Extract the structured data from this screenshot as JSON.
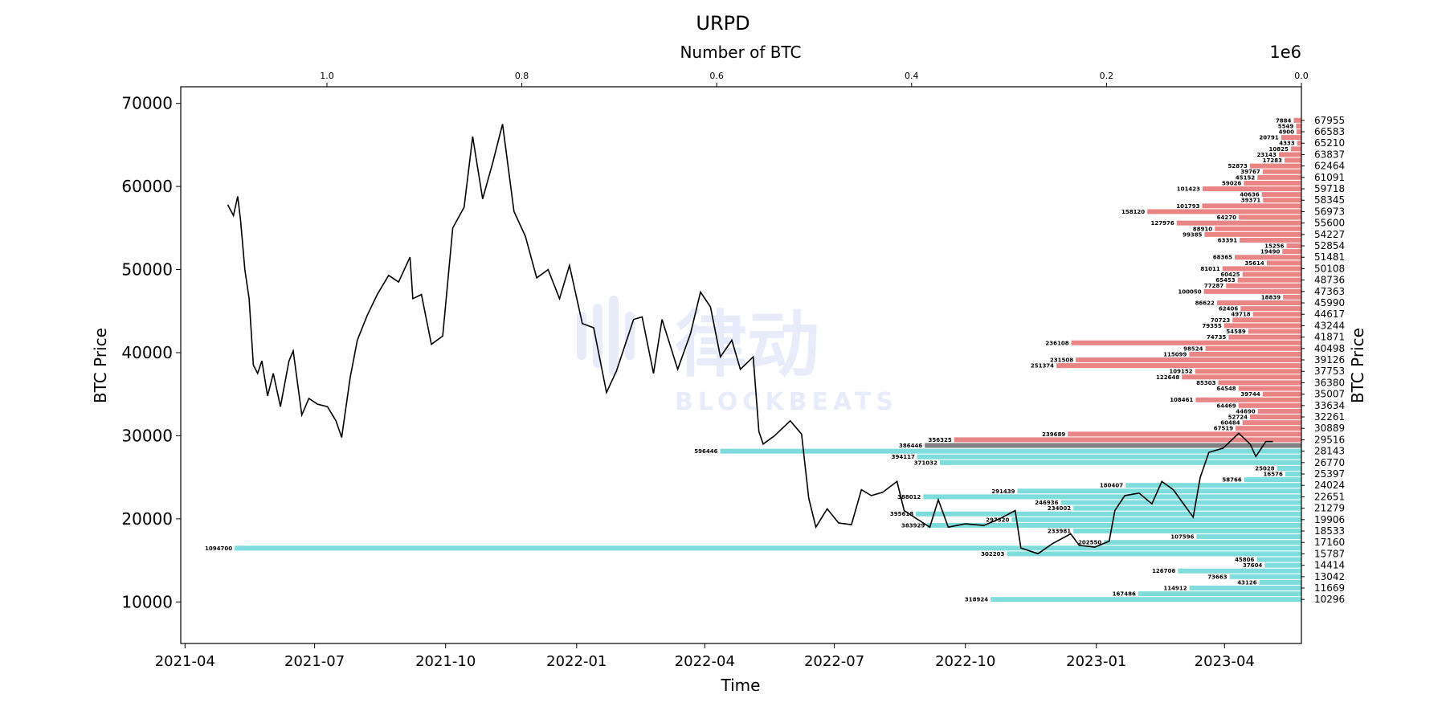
{
  "chart_data": {
    "type": "line+barh",
    "title": "URPD",
    "xlabel": "Time",
    "ylabel": "BTC Price",
    "ylabel_right": "BTC Price",
    "x2label": "Number of BTC",
    "x2_offset_label": "1e6",
    "ylim": [
      5000,
      72000
    ],
    "xlim": [
      "2021-03-29",
      "2023-05-25"
    ],
    "x2lim": [
      1150000,
      0
    ],
    "x_ticks": [
      "2021-04",
      "2021-07",
      "2021-10",
      "2022-01",
      "2022-04",
      "2022-07",
      "2022-10",
      "2023-01",
      "2023-04"
    ],
    "y_ticks": [
      10000,
      20000,
      30000,
      40000,
      50000,
      60000,
      70000
    ],
    "x2_ticks": [
      1.0,
      0.8,
      0.6,
      0.4,
      0.2,
      0.0
    ],
    "grid": false,
    "colors": {
      "above": "#e98585",
      "below": "#7fdcdc",
      "current": "#808080",
      "line": "#000000"
    },
    "price_series": {
      "name": "BTC Price",
      "points": [
        [
          "2021-05-01",
          57800
        ],
        [
          "2021-05-05",
          56500
        ],
        [
          "2021-05-08",
          58800
        ],
        [
          "2021-05-10",
          56000
        ],
        [
          "2021-05-13",
          50000
        ],
        [
          "2021-05-16",
          46500
        ],
        [
          "2021-05-19",
          38500
        ],
        [
          "2021-05-22",
          37500
        ],
        [
          "2021-05-25",
          39000
        ],
        [
          "2021-05-29",
          34800
        ],
        [
          "2021-06-02",
          37500
        ],
        [
          "2021-06-07",
          33500
        ],
        [
          "2021-06-13",
          39000
        ],
        [
          "2021-06-16",
          40200
        ],
        [
          "2021-06-22",
          32500
        ],
        [
          "2021-06-27",
          34500
        ],
        [
          "2021-07-03",
          33800
        ],
        [
          "2021-07-10",
          33500
        ],
        [
          "2021-07-16",
          31800
        ],
        [
          "2021-07-20",
          29800
        ],
        [
          "2021-07-26",
          37000
        ],
        [
          "2021-07-31",
          41500
        ],
        [
          "2021-08-07",
          44500
        ],
        [
          "2021-08-14",
          47000
        ],
        [
          "2021-08-22",
          49300
        ],
        [
          "2021-08-29",
          48500
        ],
        [
          "2021-09-06",
          51500
        ],
        [
          "2021-09-08",
          46500
        ],
        [
          "2021-09-14",
          47000
        ],
        [
          "2021-09-21",
          41000
        ],
        [
          "2021-09-29",
          42000
        ],
        [
          "2021-10-06",
          55000
        ],
        [
          "2021-10-14",
          57500
        ],
        [
          "2021-10-20",
          66000
        ],
        [
          "2021-10-27",
          58500
        ],
        [
          "2021-11-03",
          62800
        ],
        [
          "2021-11-10",
          67500
        ],
        [
          "2021-11-18",
          57000
        ],
        [
          "2021-11-26",
          54000
        ],
        [
          "2021-12-04",
          49000
        ],
        [
          "2021-12-12",
          50000
        ],
        [
          "2021-12-20",
          46500
        ],
        [
          "2021-12-27",
          50500
        ],
        [
          "2022-01-05",
          43500
        ],
        [
          "2022-01-13",
          43000
        ],
        [
          "2022-01-22",
          35200
        ],
        [
          "2022-01-29",
          37800
        ],
        [
          "2022-02-10",
          44000
        ],
        [
          "2022-02-16",
          44300
        ],
        [
          "2022-02-24",
          37500
        ],
        [
          "2022-03-02",
          44000
        ],
        [
          "2022-03-13",
          38000
        ],
        [
          "2022-03-22",
          42300
        ],
        [
          "2022-03-29",
          47300
        ],
        [
          "2022-04-05",
          45500
        ],
        [
          "2022-04-12",
          39500
        ],
        [
          "2022-04-20",
          41500
        ],
        [
          "2022-04-26",
          38000
        ],
        [
          "2022-05-05",
          39500
        ],
        [
          "2022-05-09",
          30500
        ],
        [
          "2022-05-12",
          29000
        ],
        [
          "2022-05-20",
          30000
        ],
        [
          "2022-05-31",
          31800
        ],
        [
          "2022-06-08",
          30200
        ],
        [
          "2022-06-13",
          22500
        ],
        [
          "2022-06-18",
          19000
        ],
        [
          "2022-06-26",
          21200
        ],
        [
          "2022-07-04",
          19500
        ],
        [
          "2022-07-13",
          19300
        ],
        [
          "2022-07-20",
          23500
        ],
        [
          "2022-07-27",
          22800
        ],
        [
          "2022-08-04",
          23200
        ],
        [
          "2022-08-14",
          24500
        ],
        [
          "2022-08-19",
          21000
        ],
        [
          "2022-08-28",
          20000
        ],
        [
          "2022-09-06",
          19000
        ],
        [
          "2022-09-12",
          22300
        ],
        [
          "2022-09-19",
          19000
        ],
        [
          "2022-10-01",
          19400
        ],
        [
          "2022-10-14",
          19200
        ],
        [
          "2022-10-25",
          20000
        ],
        [
          "2022-11-05",
          21000
        ],
        [
          "2022-11-09",
          16500
        ],
        [
          "2022-11-21",
          15800
        ],
        [
          "2022-12-01",
          17000
        ],
        [
          "2022-12-14",
          18200
        ],
        [
          "2022-12-20",
          16800
        ],
        [
          "2022-12-31",
          16600
        ],
        [
          "2023-01-10",
          17300
        ],
        [
          "2023-01-14",
          21000
        ],
        [
          "2023-01-21",
          22800
        ],
        [
          "2023-01-31",
          23100
        ],
        [
          "2023-02-09",
          21800
        ],
        [
          "2023-02-16",
          24500
        ],
        [
          "2023-02-24",
          23500
        ],
        [
          "2023-03-10",
          20200
        ],
        [
          "2023-03-15",
          25000
        ],
        [
          "2023-03-21",
          28000
        ],
        [
          "2023-03-31",
          28500
        ],
        [
          "2023-04-11",
          30300
        ],
        [
          "2023-04-19",
          29000
        ],
        [
          "2023-04-23",
          27500
        ],
        [
          "2023-04-30",
          29300
        ],
        [
          "2023-05-05",
          29300
        ]
      ]
    },
    "urpd": {
      "current_price": 28900,
      "bins": [
        {
          "price": 67955,
          "btc": 7884
        },
        {
          "price": 67270,
          "btc": 5549
        },
        {
          "price": 66583,
          "btc": 4900
        },
        {
          "price": 65900,
          "btc": 20791
        },
        {
          "price": 65210,
          "btc": 4333
        },
        {
          "price": 64520,
          "btc": 10825
        },
        {
          "price": 63837,
          "btc": 23143
        },
        {
          "price": 63150,
          "btc": 17283
        },
        {
          "price": 62464,
          "btc": 52873
        },
        {
          "price": 61780,
          "btc": 39767
        },
        {
          "price": 61091,
          "btc": 45152
        },
        {
          "price": 60400,
          "btc": 59026
        },
        {
          "price": 59718,
          "btc": 101423
        },
        {
          "price": 59030,
          "btc": 40636
        },
        {
          "price": 58345,
          "btc": 39371
        },
        {
          "price": 57660,
          "btc": 101793
        },
        {
          "price": 56973,
          "btc": 158120
        },
        {
          "price": 56290,
          "btc": 64270
        },
        {
          "price": 55600,
          "btc": 127976
        },
        {
          "price": 54910,
          "btc": 88910
        },
        {
          "price": 54227,
          "btc": 99385
        },
        {
          "price": 53540,
          "btc": 63391
        },
        {
          "price": 52854,
          "btc": 15256
        },
        {
          "price": 52170,
          "btc": 19490
        },
        {
          "price": 51481,
          "btc": 68365
        },
        {
          "price": 50790,
          "btc": 35614
        },
        {
          "price": 50108,
          "btc": 81011
        },
        {
          "price": 49420,
          "btc": 60425
        },
        {
          "price": 48736,
          "btc": 65453
        },
        {
          "price": 48050,
          "btc": 77287
        },
        {
          "price": 47363,
          "btc": 100050
        },
        {
          "price": 46680,
          "btc": 18839
        },
        {
          "price": 45990,
          "btc": 86622
        },
        {
          "price": 45300,
          "btc": 62406
        },
        {
          "price": 44617,
          "btc": 49718
        },
        {
          "price": 43930,
          "btc": 70723
        },
        {
          "price": 43244,
          "btc": 79355
        },
        {
          "price": 42560,
          "btc": 54589
        },
        {
          "price": 41871,
          "btc": 74735
        },
        {
          "price": 41180,
          "btc": 236108
        },
        {
          "price": 40498,
          "btc": 98524
        },
        {
          "price": 39810,
          "btc": 115099
        },
        {
          "price": 39126,
          "btc": 231508
        },
        {
          "price": 38440,
          "btc": 251374
        },
        {
          "price": 37753,
          "btc": 109152
        },
        {
          "price": 37070,
          "btc": 122648
        },
        {
          "price": 36380,
          "btc": 85303
        },
        {
          "price": 35690,
          "btc": 64548
        },
        {
          "price": 35007,
          "btc": 39744
        },
        {
          "price": 34320,
          "btc": 108461
        },
        {
          "price": 33634,
          "btc": 64469
        },
        {
          "price": 32950,
          "btc": 44690
        },
        {
          "price": 32261,
          "btc": 52724
        },
        {
          "price": 31570,
          "btc": 60484
        },
        {
          "price": 30889,
          "btc": 67519
        },
        {
          "price": 30200,
          "btc": 239689
        },
        {
          "price": 29516,
          "btc": 356325
        },
        {
          "price": 28830,
          "btc": 386446
        },
        {
          "price": 28143,
          "btc": 596446
        },
        {
          "price": 27460,
          "btc": 394117
        },
        {
          "price": 26770,
          "btc": 371032
        },
        {
          "price": 26080,
          "btc": 25028
        },
        {
          "price": 25397,
          "btc": 16576
        },
        {
          "price": 24710,
          "btc": 58766
        },
        {
          "price": 24024,
          "btc": 180407
        },
        {
          "price": 23340,
          "btc": 291439
        },
        {
          "price": 22651,
          "btc": 388012
        },
        {
          "price": 21960,
          "btc": 246936
        },
        {
          "price": 21279,
          "btc": 234002
        },
        {
          "price": 20590,
          "btc": 395618
        },
        {
          "price": 19906,
          "btc": 297320
        },
        {
          "price": 19220,
          "btc": 383929
        },
        {
          "price": 18533,
          "btc": 233981
        },
        {
          "price": 17850,
          "btc": 107596
        },
        {
          "price": 17160,
          "btc": 202550
        },
        {
          "price": 16470,
          "btc": 1094700
        },
        {
          "price": 15787,
          "btc": 302203
        },
        {
          "price": 15100,
          "btc": 45806
        },
        {
          "price": 14414,
          "btc": 37604
        },
        {
          "price": 13730,
          "btc": 126706
        },
        {
          "price": 13042,
          "btc": 73663
        },
        {
          "price": 12350,
          "btc": 43126
        },
        {
          "price": 11669,
          "btc": 114912
        },
        {
          "price": 10980,
          "btc": 167486
        },
        {
          "price": 10296,
          "btc": 318924
        }
      ],
      "right_tick_labels": [
        67955,
        66583,
        65210,
        63837,
        62464,
        61091,
        59718,
        58345,
        56973,
        55600,
        54227,
        52854,
        51481,
        50108,
        48736,
        47363,
        45990,
        44617,
        43244,
        41871,
        40498,
        39126,
        37753,
        36380,
        35007,
        33634,
        32261,
        30889,
        29516,
        28143,
        26770,
        25397,
        24024,
        22651,
        21279,
        19906,
        18533,
        17160,
        15787,
        14414,
        13042,
        11669,
        10296
      ]
    },
    "watermark": {
      "text_cn": "律动",
      "text_en": "BLOCKBEATS"
    }
  }
}
